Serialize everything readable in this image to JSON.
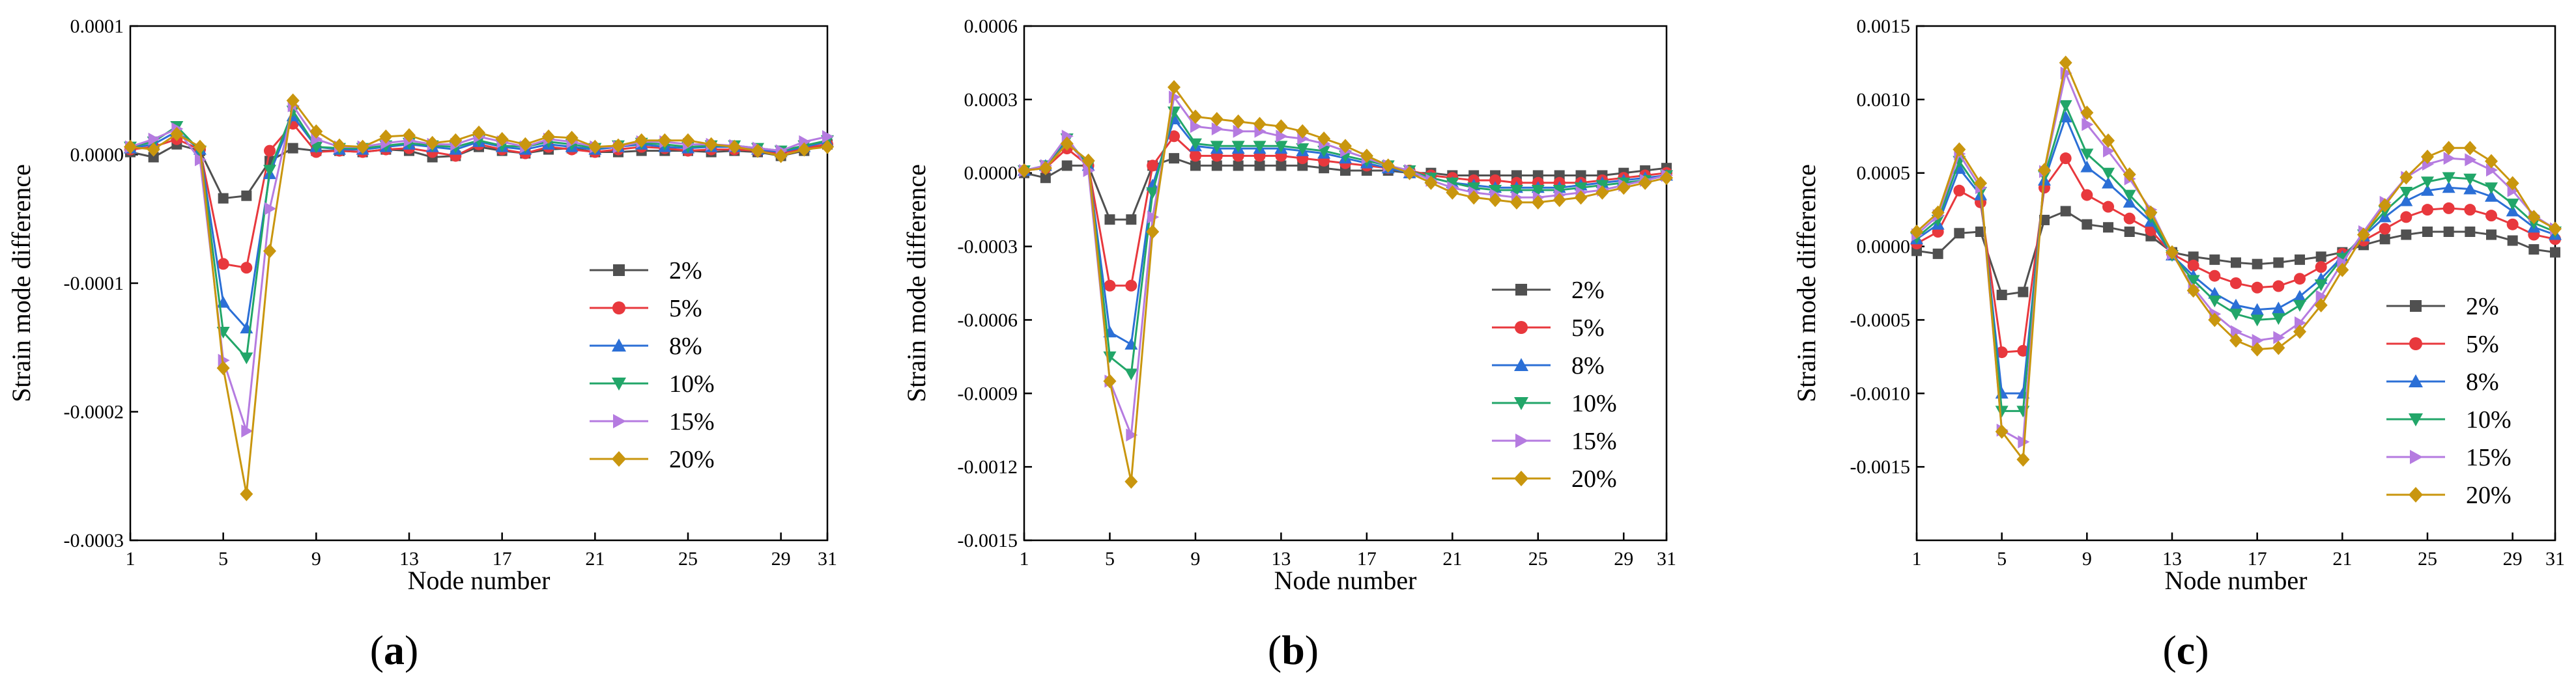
{
  "colors": {
    "2%": "#505050",
    "5%": "#e8383d",
    "8%": "#2b6fd6",
    "10%": "#22a669",
    "15%": "#b57be0",
    "20%": "#c9960e"
  },
  "chart_data": [
    {
      "type": "line",
      "panel_label": "a",
      "xlabel": "Node number",
      "ylabel": "Strain mode difference",
      "xlim": [
        1,
        31
      ],
      "ylim": [
        -0.0003,
        0.0001
      ],
      "xticks": [
        1,
        5,
        9,
        13,
        17,
        21,
        25,
        29,
        31
      ],
      "yticks": [
        -0.0003,
        -0.0002,
        -0.0001,
        0.0,
        0.0001
      ],
      "ytick_labels": [
        "-0.0003",
        "-0.0002",
        "-0.0001",
        "0.0000",
        "0.0001"
      ],
      "legend_position": "right",
      "legend_entries": [
        "2%",
        "5%",
        "8%",
        "10%",
        "15%",
        "20%"
      ],
      "x": [
        1,
        2,
        3,
        4,
        5,
        6,
        7,
        8,
        9,
        10,
        11,
        12,
        13,
        14,
        15,
        16,
        17,
        18,
        19,
        20,
        21,
        22,
        23,
        24,
        25,
        26,
        27,
        28,
        29,
        30,
        31
      ],
      "series": [
        {
          "name": "2%",
          "marker": "square",
          "values": [
            2e-06,
            -2e-06,
            8e-06,
            3e-06,
            -3.4e-05,
            -3.2e-05,
            -5e-06,
            5e-06,
            3e-06,
            3e-06,
            2e-06,
            4e-06,
            3e-06,
            -2e-06,
            -1e-06,
            6e-06,
            3e-06,
            1e-06,
            4e-06,
            5e-06,
            2e-06,
            2e-06,
            3e-06,
            3e-06,
            3e-06,
            2e-06,
            3e-06,
            2e-06,
            -1e-06,
            3e-06,
            8e-06
          ]
        },
        {
          "name": "5%",
          "marker": "circle",
          "values": [
            4e-06,
            6e-06,
            1.2e-05,
            4e-06,
            -8.5e-05,
            -8.8e-05,
            3e-06,
            2.4e-05,
            2e-06,
            3e-06,
            2e-06,
            4e-06,
            5e-06,
            2e-06,
            -1e-06,
            8e-06,
            4e-06,
            1e-06,
            6e-06,
            4e-06,
            2e-06,
            4e-06,
            6e-06,
            5e-06,
            3e-06,
            4e-06,
            4e-06,
            3e-06,
            1e-06,
            5e-06,
            8e-06
          ]
        },
        {
          "name": "8%",
          "marker": "triangle-up",
          "values": [
            5e-06,
            8e-06,
            1.8e-05,
            4e-06,
            -0.000115,
            -0.000135,
            -1.5e-05,
            3e-05,
            6e-06,
            4e-06,
            4e-06,
            6e-06,
            8e-06,
            6e-06,
            4e-06,
            1e-05,
            6e-06,
            4e-06,
            8e-06,
            6e-06,
            4e-06,
            6e-06,
            8e-06,
            6e-06,
            5e-06,
            6e-06,
            6e-06,
            4e-06,
            2e-06,
            6e-06,
            1e-05
          ]
        },
        {
          "name": "10%",
          "marker": "triangle-down",
          "values": [
            6e-06,
            1e-05,
            2.2e-05,
            3e-06,
            -0.000138,
            -0.000158,
            -1.2e-05,
            3.4e-05,
            6e-06,
            5e-06,
            5e-06,
            7e-06,
            9e-06,
            7e-06,
            6e-06,
            1.1e-05,
            7e-06,
            6e-06,
            1e-05,
            8e-06,
            5e-06,
            7e-06,
            9e-06,
            8e-06,
            6e-06,
            7e-06,
            7e-06,
            5e-06,
            3e-06,
            7e-06,
            1.1e-05
          ]
        },
        {
          "name": "15%",
          "marker": "triangle-right",
          "values": [
            6e-06,
            1.2e-05,
            2e-05,
            -4e-06,
            -0.00016,
            -0.000215,
            -4.2e-05,
            3.8e-05,
            1.2e-05,
            6e-06,
            6e-06,
            9e-06,
            1.1e-05,
            8e-06,
            8e-06,
            1.4e-05,
            1e-05,
            6e-06,
            1.2e-05,
            1e-05,
            6e-06,
            6e-06,
            1e-05,
            1e-05,
            8e-06,
            8e-06,
            7e-06,
            5e-06,
            3e-06,
            1e-05,
            1.4e-05
          ]
        },
        {
          "name": "20%",
          "marker": "diamond",
          "values": [
            6e-06,
            4e-06,
            1.6e-05,
            6e-06,
            -0.000166,
            -0.000264,
            -7.5e-05,
            4.2e-05,
            1.8e-05,
            7e-06,
            6e-06,
            1.4e-05,
            1.5e-05,
            9e-06,
            1.1e-05,
            1.7e-05,
            1.2e-05,
            8e-06,
            1.4e-05,
            1.3e-05,
            6e-06,
            7e-06,
            1.1e-05,
            1.1e-05,
            1.1e-05,
            8e-06,
            6e-06,
            3e-06,
            -1e-06,
            4e-06,
            6e-06
          ]
        }
      ]
    },
    {
      "type": "line",
      "panel_label": "b",
      "xlabel": "Node number",
      "ylabel": "Strain mode difference",
      "xlim": [
        1,
        31
      ],
      "ylim": [
        -0.0015,
        0.0006
      ],
      "xticks": [
        1,
        5,
        9,
        13,
        17,
        21,
        25,
        29,
        31
      ],
      "yticks": [
        -0.0015,
        -0.0012,
        -0.0009,
        -0.0006,
        -0.0003,
        0.0,
        0.0003,
        0.0006
      ],
      "ytick_labels": [
        "-0.0015",
        "-0.0012",
        "-0.0009",
        "-0.0006",
        "-0.0003",
        "0.0000",
        "0.0003",
        "0.0006"
      ],
      "legend_position": "right",
      "legend_entries": [
        "2%",
        "5%",
        "8%",
        "10%",
        "15%",
        "20%"
      ],
      "x": [
        1,
        2,
        3,
        4,
        5,
        6,
        7,
        8,
        9,
        10,
        11,
        12,
        13,
        14,
        15,
        16,
        17,
        18,
        19,
        20,
        21,
        22,
        23,
        24,
        25,
        26,
        27,
        28,
        29,
        30,
        31
      ],
      "series": [
        {
          "name": "2%",
          "marker": "square",
          "values": [
            0.0,
            -2e-05,
            3e-05,
            3e-05,
            -0.00019,
            -0.00019,
            3e-05,
            6e-05,
            3e-05,
            3e-05,
            3e-05,
            3e-05,
            3e-05,
            3e-05,
            2e-05,
            1e-05,
            1e-05,
            1e-05,
            0.0,
            0.0,
            -1e-05,
            -1e-05,
            -1e-05,
            -1e-05,
            -1e-05,
            -1e-05,
            -1e-05,
            -1e-05,
            0.0,
            1e-05,
            2e-05
          ]
        },
        {
          "name": "5%",
          "marker": "circle",
          "values": [
            1e-05,
            2e-05,
            0.0001,
            3e-05,
            -0.00046,
            -0.00046,
            3e-05,
            0.00015,
            7e-05,
            7e-05,
            7e-05,
            7e-05,
            7e-05,
            6e-05,
            5e-05,
            4e-05,
            3e-05,
            2e-05,
            1e-05,
            -1e-05,
            -2e-05,
            -3e-05,
            -3e-05,
            -4e-05,
            -4e-05,
            -4e-05,
            -4e-05,
            -3e-05,
            -2e-05,
            -1e-05,
            0.0
          ]
        },
        {
          "name": "8%",
          "marker": "triangle-up",
          "values": [
            1e-05,
            3e-05,
            0.00013,
            3e-05,
            -0.00065,
            -0.0007,
            -5e-05,
            0.00022,
            0.00011,
            0.0001,
            0.0001,
            0.0001,
            0.0001,
            9e-05,
            8e-05,
            6e-05,
            4e-05,
            2e-05,
            0.0,
            -2e-05,
            -4e-05,
            -5e-05,
            -6e-05,
            -6e-05,
            -6e-05,
            -6e-05,
            -5e-05,
            -4e-05,
            -3e-05,
            -2e-05,
            -1e-05
          ]
        },
        {
          "name": "10%",
          "marker": "triangle-down",
          "values": [
            1e-05,
            3e-05,
            0.00014,
            3e-05,
            -0.00075,
            -0.00082,
            -8e-05,
            0.00025,
            0.00012,
            0.00011,
            0.00011,
            0.00011,
            0.00011,
            0.0001,
            9e-05,
            7e-05,
            5e-05,
            3e-05,
            1e-05,
            -2e-05,
            -4e-05,
            -6e-05,
            -7e-05,
            -7e-05,
            -7e-05,
            -7e-05,
            -6e-05,
            -5e-05,
            -4e-05,
            -3e-05,
            -1e-05
          ]
        },
        {
          "name": "15%",
          "marker": "triangle-right",
          "values": [
            1e-05,
            3e-05,
            0.00015,
            1e-05,
            -0.00085,
            -0.00107,
            -0.00018,
            0.00031,
            0.00019,
            0.00018,
            0.00017,
            0.00017,
            0.00015,
            0.00014,
            0.00012,
            9e-05,
            6e-05,
            3e-05,
            1e-05,
            -3e-05,
            -6e-05,
            -8e-05,
            -9e-05,
            -0.0001,
            -0.0001,
            -9e-05,
            -8e-05,
            -7e-05,
            -5e-05,
            -3e-05,
            -1e-05
          ]
        },
        {
          "name": "20%",
          "marker": "diamond",
          "values": [
            1e-05,
            2e-05,
            0.00012,
            5e-05,
            -0.00085,
            -0.00126,
            -0.00024,
            0.00035,
            0.00023,
            0.00022,
            0.00021,
            0.0002,
            0.00019,
            0.00017,
            0.00014,
            0.00011,
            7e-05,
            3e-05,
            0.0,
            -4e-05,
            -8e-05,
            -0.0001,
            -0.00011,
            -0.00012,
            -0.00012,
            -0.00011,
            -0.0001,
            -8e-05,
            -6e-05,
            -4e-05,
            -2e-05
          ]
        }
      ]
    },
    {
      "type": "line",
      "panel_label": "c",
      "xlabel": "Node number",
      "ylabel": "Strain mode difference",
      "xlim": [
        1,
        31
      ],
      "ylim": [
        -0.002,
        0.0015
      ],
      "xticks": [
        1,
        5,
        9,
        13,
        17,
        21,
        25,
        29,
        31
      ],
      "yticks": [
        -0.0015,
        -0.001,
        -0.0005,
        0.0,
        0.0005,
        0.001,
        0.0015
      ],
      "ytick_labels": [
        "-0.0015",
        "-0.0010",
        "-0.0005",
        "0.0000",
        "0.0005",
        "0.0010",
        "0.0015"
      ],
      "legend_position": "right",
      "legend_entries": [
        "2%",
        "5%",
        "8%",
        "10%",
        "15%",
        "20%"
      ],
      "x": [
        1,
        2,
        3,
        4,
        5,
        6,
        7,
        8,
        9,
        10,
        11,
        12,
        13,
        14,
        15,
        16,
        17,
        18,
        19,
        20,
        21,
        22,
        23,
        24,
        25,
        26,
        27,
        28,
        29,
        30,
        31
      ],
      "series": [
        {
          "name": "2%",
          "marker": "square",
          "values": [
            -3e-05,
            -5e-05,
            9e-05,
            0.0001,
            -0.00033,
            -0.00031,
            0.00018,
            0.00024,
            0.00015,
            0.00013,
            0.0001,
            7e-05,
            -4e-05,
            -7e-05,
            -9e-05,
            -0.00011,
            -0.00012,
            -0.00011,
            -9e-05,
            -7e-05,
            -4e-05,
            1e-05,
            5e-05,
            8e-05,
            0.0001,
            0.0001,
            0.0001,
            8e-05,
            4e-05,
            -2e-05,
            -4e-05
          ]
        },
        {
          "name": "5%",
          "marker": "circle",
          "values": [
            2e-05,
            0.0001,
            0.00038,
            0.0003,
            -0.00072,
            -0.00071,
            0.0004,
            0.0006,
            0.00035,
            0.00027,
            0.00019,
            0.00011,
            -5e-05,
            -0.00013,
            -0.0002,
            -0.00025,
            -0.00028,
            -0.00027,
            -0.00022,
            -0.00014,
            -5e-05,
            4e-05,
            0.00012,
            0.0002,
            0.00025,
            0.00026,
            0.00025,
            0.00021,
            0.00015,
            8e-05,
            5e-05
          ]
        },
        {
          "name": "8%",
          "marker": "triangle-up",
          "values": [
            5e-05,
            0.00015,
            0.00053,
            0.00035,
            -0.001,
            -0.001,
            0.00045,
            0.00088,
            0.00054,
            0.00043,
            0.0003,
            0.00017,
            -6e-05,
            -0.0002,
            -0.00032,
            -0.0004,
            -0.00043,
            -0.00042,
            -0.00034,
            -0.00022,
            -7e-05,
            7e-05,
            0.0002,
            0.00031,
            0.00038,
            0.0004,
            0.00039,
            0.00034,
            0.00024,
            0.00013,
            8e-05
          ]
        },
        {
          "name": "10%",
          "marker": "triangle-down",
          "values": [
            6e-05,
            0.00018,
            0.00058,
            0.00037,
            -0.00112,
            -0.00112,
            0.00048,
            0.00096,
            0.00063,
            0.0005,
            0.00035,
            0.0002,
            -6e-05,
            -0.00023,
            -0.00037,
            -0.00046,
            -0.0005,
            -0.00049,
            -0.0004,
            -0.00026,
            -8e-05,
            8e-05,
            0.00024,
            0.00037,
            0.00044,
            0.00047,
            0.00046,
            0.0004,
            0.00029,
            0.00016,
            0.0001
          ]
        },
        {
          "name": "15%",
          "marker": "triangle-right",
          "values": [
            8e-05,
            0.00021,
            0.00063,
            0.0004,
            -0.00125,
            -0.00133,
            0.00051,
            0.00118,
            0.00083,
            0.00065,
            0.00046,
            0.00025,
            -5e-05,
            -0.00028,
            -0.00046,
            -0.00058,
            -0.00064,
            -0.00062,
            -0.00052,
            -0.00034,
            -0.00011,
            0.0001,
            0.0003,
            0.00047,
            0.00056,
            0.0006,
            0.00059,
            0.00052,
            0.00038,
            0.00021,
            0.00012
          ]
        },
        {
          "name": "20%",
          "marker": "diamond",
          "values": [
            0.0001,
            0.00023,
            0.00066,
            0.00043,
            -0.00126,
            -0.00145,
            0.00052,
            0.00125,
            0.00091,
            0.00072,
            0.00049,
            0.00023,
            -4e-05,
            -0.0003,
            -0.0005,
            -0.00064,
            -0.0007,
            -0.00069,
            -0.00058,
            -0.0004,
            -0.00016,
            8e-05,
            0.00028,
            0.00047,
            0.00061,
            0.00067,
            0.00067,
            0.00058,
            0.00043,
            0.0002,
            0.00012
          ]
        }
      ]
    }
  ]
}
